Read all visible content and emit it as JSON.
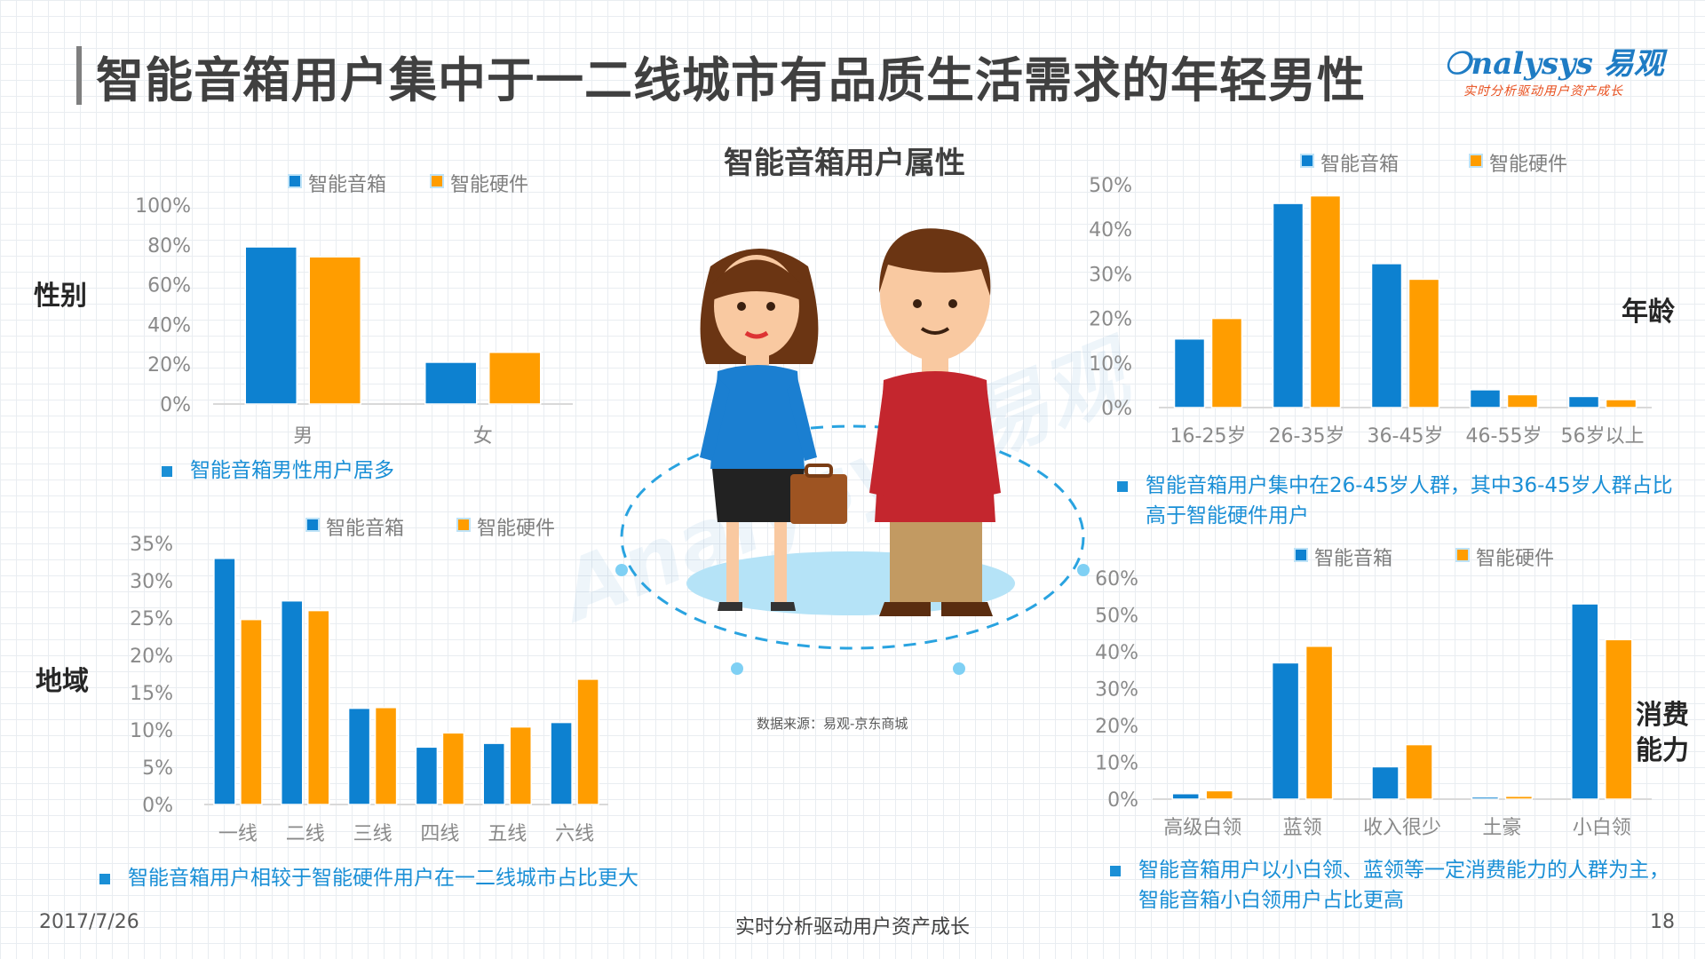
{
  "title": "智能音箱用户集中于一二线城市有品质生活需求的年轻男性",
  "logo": {
    "brand": "nalysys 易观",
    "tagline": "实时分析驱动用户资产成长"
  },
  "center": {
    "title": "智能音箱用户属性",
    "source": "数据来源：易观-京东商城"
  },
  "sections": {
    "gender": "性别",
    "region": "地域",
    "age": "年龄",
    "consumption": "消费能力"
  },
  "notes": {
    "gender": "智能音箱男性用户居多",
    "region": "智能音箱用户相较于智能硬件用户在一二线城市占比更大",
    "age": "智能音箱用户集中在26-45岁人群，其中36-45岁人群占比高于智能硬件用户",
    "consumption": "智能音箱用户以小白领、蓝领等一定消费能力的人群为主，智能音箱小白领用户占比更高"
  },
  "colors": {
    "speaker": "#0d81d0",
    "hardware": "#ff9d00"
  },
  "footer": {
    "date": "2017/7/26",
    "center": "实时分析驱动用户资产成长",
    "page": "18"
  },
  "chart_data": [
    {
      "id": "gender",
      "type": "bar",
      "categories": [
        "男",
        "女"
      ],
      "series": [
        {
          "name": "智能音箱",
          "values": [
            79,
            21
          ]
        },
        {
          "name": "智能硬件",
          "values": [
            74,
            26
          ]
        }
      ],
      "ylim": [
        0,
        100
      ],
      "yticks": [
        0,
        20,
        40,
        60,
        80,
        100
      ],
      "tick_suffix": "%",
      "legend": "top"
    },
    {
      "id": "region",
      "type": "bar",
      "categories": [
        "一线",
        "二线",
        "三线",
        "四线",
        "五线",
        "六线"
      ],
      "series": [
        {
          "name": "智能音箱",
          "values": [
            33,
            27.3,
            12.9,
            7.7,
            8.2,
            11
          ]
        },
        {
          "name": "智能硬件",
          "values": [
            24.8,
            26,
            13,
            9.6,
            10.4,
            16.8
          ]
        }
      ],
      "ylim": [
        0,
        35
      ],
      "yticks": [
        0,
        5,
        10,
        15,
        20,
        25,
        30,
        35
      ],
      "tick_suffix": "%",
      "legend": "top"
    },
    {
      "id": "age",
      "type": "bar",
      "categories": [
        "16-25岁",
        "26-35岁",
        "36-45岁",
        "46-55岁",
        "56岁以上"
      ],
      "series": [
        {
          "name": "智能音箱",
          "values": [
            15.4,
            45.8,
            32.3,
            4,
            2.5
          ]
        },
        {
          "name": "智能硬件",
          "values": [
            20,
            47.5,
            28.8,
            2.9,
            1.8
          ]
        }
      ],
      "ylim": [
        0,
        50
      ],
      "yticks": [
        0,
        10,
        20,
        30,
        40,
        50
      ],
      "tick_suffix": "%",
      "legend": "top"
    },
    {
      "id": "consumption",
      "type": "bar",
      "categories": [
        "高级白领",
        "蓝领",
        "收入很少",
        "土豪",
        "小白领"
      ],
      "series": [
        {
          "name": "智能音箱",
          "values": [
            1.5,
            37,
            8.8,
            0.6,
            53
          ]
        },
        {
          "name": "智能硬件",
          "values": [
            2.3,
            41.5,
            14.8,
            0.8,
            43.3
          ]
        }
      ],
      "ylim": [
        0,
        60
      ],
      "yticks": [
        0,
        10,
        20,
        30,
        40,
        50,
        60
      ],
      "tick_suffix": "%",
      "legend": "top"
    }
  ]
}
